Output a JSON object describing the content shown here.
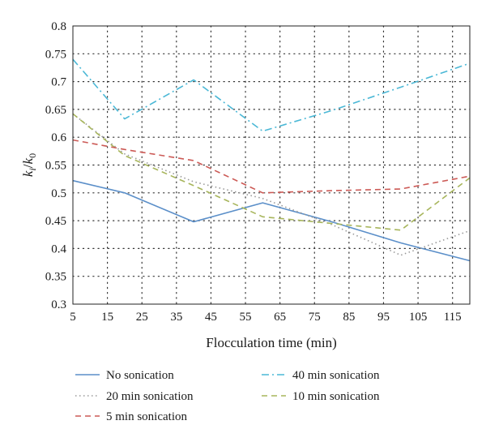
{
  "chart_data": {
    "type": "line",
    "title": "",
    "xlabel": "Flocculation time (min)",
    "ylabel": "k_i/k_0",
    "ylabel_parts": {
      "main": "k",
      "sub1": "i",
      "sep": "/",
      "main2": "k",
      "sub2": "0"
    },
    "xlim": [
      5,
      120
    ],
    "ylim": [
      0.3,
      0.8
    ],
    "xticks": [
      "5",
      "15",
      "25",
      "35",
      "45",
      "55",
      "65",
      "75",
      "85",
      "95",
      "105",
      "115"
    ],
    "xtick_values": [
      5,
      15,
      25,
      35,
      45,
      55,
      65,
      75,
      85,
      95,
      105,
      115
    ],
    "yticks": [
      "0.3",
      "0.35",
      "0.4",
      "0.45",
      "0.5",
      "0.55",
      "0.6",
      "0.65",
      "0.7",
      "0.75",
      "0.8"
    ],
    "ytick_values": [
      0.3,
      0.35,
      0.4,
      0.45,
      0.5,
      0.55,
      0.6,
      0.65,
      0.7,
      0.75,
      0.8
    ],
    "grid": true,
    "legend_position": "bottom",
    "series": [
      {
        "name": "No sonication",
        "color": "#5b8fc9",
        "dash": "solid",
        "x": [
          5,
          20,
          40,
          60,
          80,
          100,
          120
        ],
        "y": [
          0.522,
          0.5,
          0.448,
          0.482,
          0.448,
          0.41,
          0.378
        ]
      },
      {
        "name": "40 min sonication",
        "color": "#4bb8d6",
        "dash": "dashdot",
        "x": [
          5,
          20,
          40,
          60,
          80,
          100,
          120
        ],
        "y": [
          0.74,
          0.633,
          0.703,
          0.611,
          0.648,
          0.69,
          0.733
        ]
      },
      {
        "name": "20 min sonication",
        "color": "#999999",
        "dash": "dotted",
        "x": [
          5,
          20,
          40,
          60,
          80,
          100,
          120
        ],
        "y": [
          0.642,
          0.57,
          0.52,
          0.49,
          0.443,
          0.388,
          0.432
        ]
      },
      {
        "name": "10 min sonication",
        "color": "#a7b55b",
        "dash": "dashed",
        "x": [
          5,
          20,
          40,
          60,
          80,
          100,
          120
        ],
        "y": [
          0.642,
          0.567,
          0.513,
          0.457,
          0.445,
          0.433,
          0.527
        ]
      },
      {
        "name": "5 min sonication",
        "color": "#cc5a56",
        "dash": "dashed",
        "x": [
          5,
          20,
          40,
          60,
          80,
          100,
          120
        ],
        "y": [
          0.595,
          0.578,
          0.558,
          0.5,
          0.504,
          0.507,
          0.53
        ]
      }
    ]
  }
}
